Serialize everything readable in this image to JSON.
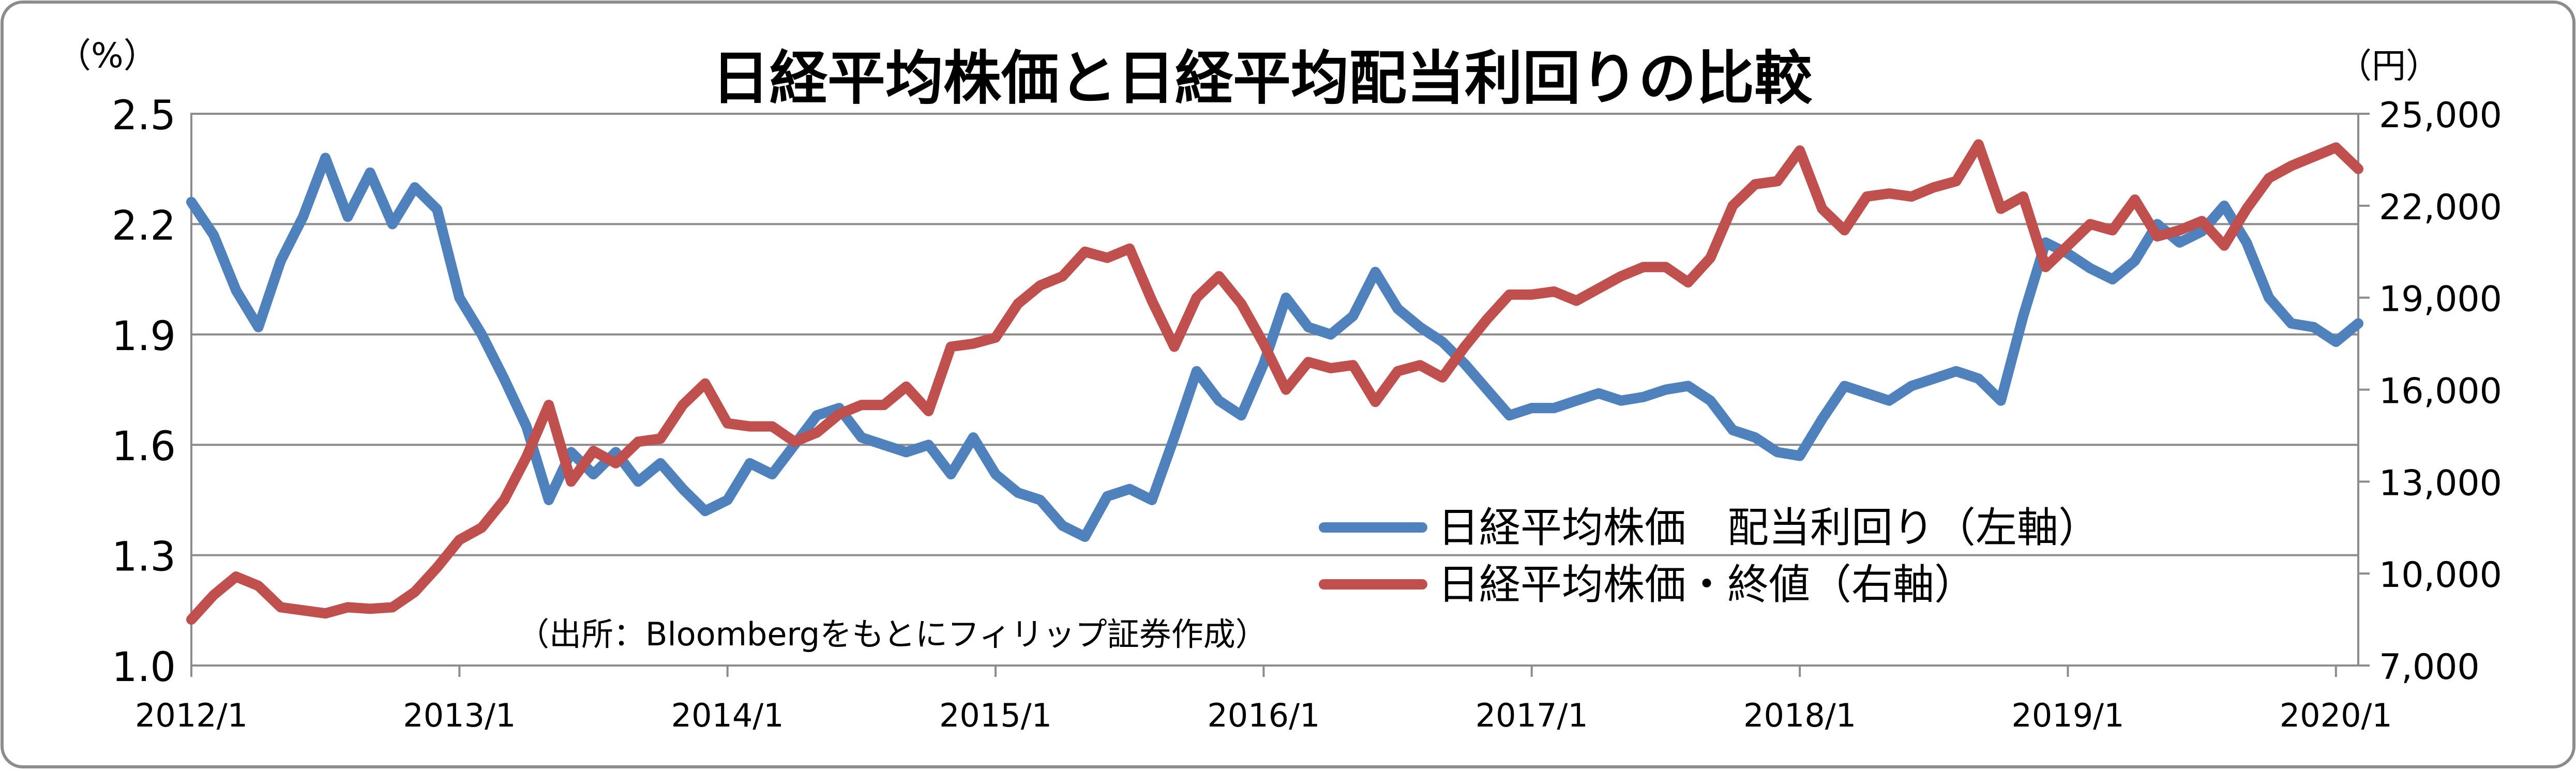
{
  "chart_data": {
    "type": "line",
    "title": "日経平均株価と日経平均配当利回りの比較",
    "left_axis_unit": "（%）",
    "right_axis_unit": "（円）",
    "source_note": "（出所：Bloombergをもとにフィリップ証券作成）",
    "x_ticks": [
      "2012/1",
      "2013/1",
      "2014/1",
      "2015/1",
      "2016/1",
      "2017/1",
      "2018/1",
      "2019/1",
      "2020/1"
    ],
    "y_left_ticks": [
      "1.0",
      "1.3",
      "1.6",
      "1.9",
      "2.2",
      "2.5"
    ],
    "y_right_ticks": [
      "7,000",
      "10,000",
      "13,000",
      "16,000",
      "19,000",
      "22,000",
      "25,000"
    ],
    "y_left_range": [
      1.0,
      2.5
    ],
    "y_right_range": [
      7000,
      25000
    ],
    "x_range": [
      "2012/1",
      "2020/2"
    ],
    "grid": "horizontal",
    "legend_position": "lower-right-inside",
    "series": [
      {
        "name": "日経平均株価　配当利回り（左軸）",
        "axis": "left",
        "color": "#4f81bd",
        "points": [
          [
            "2012/1",
            2.26
          ],
          [
            "2012/2",
            2.17
          ],
          [
            "2012/3",
            2.02
          ],
          [
            "2012/4",
            1.92
          ],
          [
            "2012/5",
            2.1
          ],
          [
            "2012/6",
            2.22
          ],
          [
            "2012/7",
            2.38
          ],
          [
            "2012/8",
            2.22
          ],
          [
            "2012/9",
            2.34
          ],
          [
            "2012/10",
            2.2
          ],
          [
            "2012/11",
            2.3
          ],
          [
            "2012/12",
            2.24
          ],
          [
            "2013/1",
            2.0
          ],
          [
            "2013/2",
            1.9
          ],
          [
            "2013/3",
            1.78
          ],
          [
            "2013/4",
            1.65
          ],
          [
            "2013/5",
            1.45
          ],
          [
            "2013/6",
            1.58
          ],
          [
            "2013/7",
            1.52
          ],
          [
            "2013/8",
            1.58
          ],
          [
            "2013/9",
            1.5
          ],
          [
            "2013/10",
            1.55
          ],
          [
            "2013/11",
            1.48
          ],
          [
            "2013/12",
            1.42
          ],
          [
            "2014/1",
            1.45
          ],
          [
            "2014/2",
            1.55
          ],
          [
            "2014/3",
            1.52
          ],
          [
            "2014/4",
            1.6
          ],
          [
            "2014/5",
            1.68
          ],
          [
            "2014/6",
            1.7
          ],
          [
            "2014/7",
            1.62
          ],
          [
            "2014/8",
            1.6
          ],
          [
            "2014/9",
            1.58
          ],
          [
            "2014/10",
            1.6
          ],
          [
            "2014/11",
            1.52
          ],
          [
            "2014/12",
            1.62
          ],
          [
            "2015/1",
            1.52
          ],
          [
            "2015/2",
            1.47
          ],
          [
            "2015/3",
            1.45
          ],
          [
            "2015/4",
            1.38
          ],
          [
            "2015/5",
            1.35
          ],
          [
            "2015/6",
            1.46
          ],
          [
            "2015/7",
            1.48
          ],
          [
            "2015/8",
            1.45
          ],
          [
            "2015/9",
            1.62
          ],
          [
            "2015/10",
            1.8
          ],
          [
            "2015/11",
            1.72
          ],
          [
            "2015/12",
            1.68
          ],
          [
            "2016/1",
            1.82
          ],
          [
            "2016/2",
            2.0
          ],
          [
            "2016/3",
            1.92
          ],
          [
            "2016/4",
            1.9
          ],
          [
            "2016/5",
            1.95
          ],
          [
            "2016/6",
            2.07
          ],
          [
            "2016/7",
            1.97
          ],
          [
            "2016/8",
            1.92
          ],
          [
            "2016/9",
            1.88
          ],
          [
            "2016/10",
            1.82
          ],
          [
            "2016/11",
            1.75
          ],
          [
            "2016/12",
            1.68
          ],
          [
            "2017/1",
            1.7
          ],
          [
            "2017/2",
            1.7
          ],
          [
            "2017/3",
            1.72
          ],
          [
            "2017/4",
            1.74
          ],
          [
            "2017/5",
            1.72
          ],
          [
            "2017/6",
            1.73
          ],
          [
            "2017/7",
            1.75
          ],
          [
            "2017/8",
            1.76
          ],
          [
            "2017/9",
            1.72
          ],
          [
            "2017/10",
            1.64
          ],
          [
            "2017/11",
            1.62
          ],
          [
            "2017/12",
            1.58
          ],
          [
            "2018/1",
            1.57
          ],
          [
            "2018/2",
            1.67
          ],
          [
            "2018/3",
            1.76
          ],
          [
            "2018/4",
            1.74
          ],
          [
            "2018/5",
            1.72
          ],
          [
            "2018/6",
            1.76
          ],
          [
            "2018/7",
            1.78
          ],
          [
            "2018/8",
            1.8
          ],
          [
            "2018/9",
            1.78
          ],
          [
            "2018/10",
            1.72
          ],
          [
            "2018/11",
            1.95
          ],
          [
            "2018/12",
            2.15
          ],
          [
            "2019/1",
            2.12
          ],
          [
            "2019/2",
            2.08
          ],
          [
            "2019/3",
            2.05
          ],
          [
            "2019/4",
            2.1
          ],
          [
            "2019/5",
            2.2
          ],
          [
            "2019/6",
            2.15
          ],
          [
            "2019/7",
            2.18
          ],
          [
            "2019/8",
            2.25
          ],
          [
            "2019/9",
            2.15
          ],
          [
            "2019/10",
            2.0
          ],
          [
            "2019/11",
            1.93
          ],
          [
            "2019/12",
            1.92
          ],
          [
            "2020/1",
            1.88
          ],
          [
            "2020/2",
            1.93
          ]
        ]
      },
      {
        "name": "日経平均株価・終値（右軸）",
        "axis": "right",
        "color": "#c0504d",
        "points": [
          [
            "2012/1",
            8500
          ],
          [
            "2012/2",
            9300
          ],
          [
            "2012/3",
            9900
          ],
          [
            "2012/4",
            9600
          ],
          [
            "2012/5",
            8900
          ],
          [
            "2012/6",
            8800
          ],
          [
            "2012/7",
            8700
          ],
          [
            "2012/8",
            8900
          ],
          [
            "2012/9",
            8850
          ],
          [
            "2012/10",
            8900
          ],
          [
            "2012/11",
            9400
          ],
          [
            "2012/12",
            10200
          ],
          [
            "2013/1",
            11100
          ],
          [
            "2013/2",
            11500
          ],
          [
            "2013/3",
            12400
          ],
          [
            "2013/4",
            13800
          ],
          [
            "2013/5",
            15500
          ],
          [
            "2013/6",
            13000
          ],
          [
            "2013/7",
            14000
          ],
          [
            "2013/8",
            13600
          ],
          [
            "2013/9",
            14300
          ],
          [
            "2013/10",
            14400
          ],
          [
            "2013/11",
            15500
          ],
          [
            "2013/12",
            16200
          ],
          [
            "2014/1",
            14900
          ],
          [
            "2014/2",
            14800
          ],
          [
            "2014/3",
            14800
          ],
          [
            "2014/4",
            14300
          ],
          [
            "2014/5",
            14600
          ],
          [
            "2014/6",
            15200
          ],
          [
            "2014/7",
            15500
          ],
          [
            "2014/8",
            15500
          ],
          [
            "2014/9",
            16100
          ],
          [
            "2014/10",
            15300
          ],
          [
            "2014/11",
            17400
          ],
          [
            "2014/12",
            17500
          ],
          [
            "2015/1",
            17700
          ],
          [
            "2015/2",
            18800
          ],
          [
            "2015/3",
            19400
          ],
          [
            "2015/4",
            19700
          ],
          [
            "2015/5",
            20500
          ],
          [
            "2015/6",
            20300
          ],
          [
            "2015/7",
            20600
          ],
          [
            "2015/8",
            18900
          ],
          [
            "2015/9",
            17400
          ],
          [
            "2015/10",
            19000
          ],
          [
            "2015/11",
            19700
          ],
          [
            "2015/12",
            18800
          ],
          [
            "2016/1",
            17500
          ],
          [
            "2016/2",
            16000
          ],
          [
            "2016/3",
            16900
          ],
          [
            "2016/4",
            16700
          ],
          [
            "2016/5",
            16800
          ],
          [
            "2016/6",
            15600
          ],
          [
            "2016/7",
            16600
          ],
          [
            "2016/8",
            16800
          ],
          [
            "2016/9",
            16400
          ],
          [
            "2016/10",
            17400
          ],
          [
            "2016/11",
            18300
          ],
          [
            "2016/12",
            19100
          ],
          [
            "2017/1",
            19100
          ],
          [
            "2017/2",
            19200
          ],
          [
            "2017/3",
            18900
          ],
          [
            "2017/4",
            19300
          ],
          [
            "2017/5",
            19700
          ],
          [
            "2017/6",
            20000
          ],
          [
            "2017/7",
            20000
          ],
          [
            "2017/8",
            19500
          ],
          [
            "2017/9",
            20300
          ],
          [
            "2017/10",
            22000
          ],
          [
            "2017/11",
            22700
          ],
          [
            "2017/12",
            22800
          ],
          [
            "2018/1",
            23800
          ],
          [
            "2018/2",
            21900
          ],
          [
            "2018/3",
            21200
          ],
          [
            "2018/4",
            22300
          ],
          [
            "2018/5",
            22400
          ],
          [
            "2018/6",
            22300
          ],
          [
            "2018/7",
            22600
          ],
          [
            "2018/8",
            22800
          ],
          [
            "2018/9",
            24000
          ],
          [
            "2018/10",
            21900
          ],
          [
            "2018/11",
            22300
          ],
          [
            "2018/12",
            20000
          ],
          [
            "2019/1",
            20700
          ],
          [
            "2019/2",
            21400
          ],
          [
            "2019/3",
            21200
          ],
          [
            "2019/4",
            22200
          ],
          [
            "2019/5",
            21000
          ],
          [
            "2019/6",
            21200
          ],
          [
            "2019/7",
            21500
          ],
          [
            "2019/8",
            20700
          ],
          [
            "2019/9",
            21900
          ],
          [
            "2019/10",
            22900
          ],
          [
            "2019/11",
            23300
          ],
          [
            "2019/12",
            23600
          ],
          [
            "2020/1",
            23900
          ],
          [
            "2020/2",
            23200
          ]
        ]
      }
    ]
  }
}
